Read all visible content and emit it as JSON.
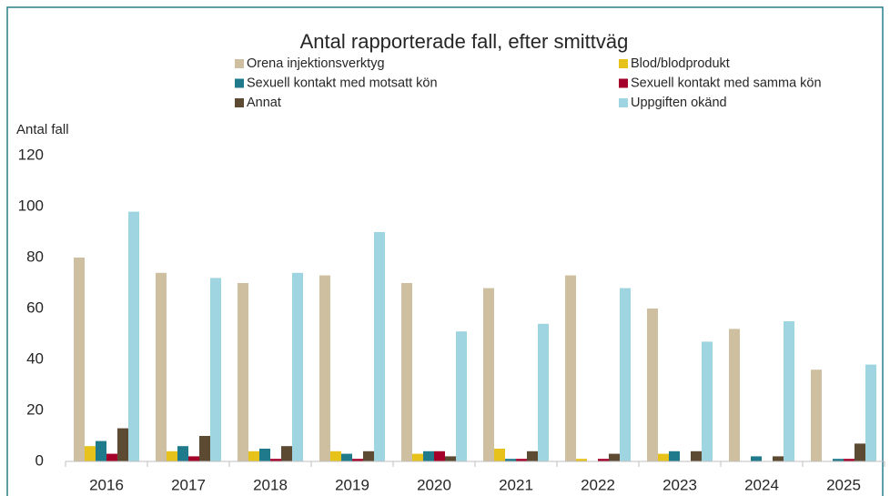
{
  "chart_data": {
    "type": "bar",
    "title": "Antal rapporterade fall, efter smittväg",
    "y_label": "Antal fall",
    "categories": [
      "2016",
      "2017",
      "2018",
      "2019",
      "2020",
      "2021",
      "2022",
      "2023",
      "2024",
      "2025"
    ],
    "series": [
      {
        "name": "Orena injektionsverktyg",
        "color": "#cdbfa0",
        "values": [
          80,
          74,
          70,
          73,
          70,
          68,
          73,
          60,
          52,
          36
        ]
      },
      {
        "name": "Blod/blodprodukt",
        "color": "#e6c21a",
        "values": [
          6,
          4,
          4,
          4,
          3,
          5,
          1,
          3,
          0,
          0
        ]
      },
      {
        "name": "Sexuell kontakt med motsatt kön",
        "color": "#1f7a8c",
        "values": [
          8,
          6,
          5,
          3,
          4,
          1,
          0,
          4,
          2,
          1
        ]
      },
      {
        "name": "Sexuell kontakt med samma kön",
        "color": "#a5002a",
        "values": [
          3,
          2,
          1,
          1,
          4,
          1,
          1,
          0,
          0,
          1
        ]
      },
      {
        "name": "Annat",
        "color": "#5c4a32",
        "values": [
          13,
          10,
          6,
          4,
          2,
          4,
          3,
          4,
          2,
          7
        ]
      },
      {
        "name": "Uppgiften okänd",
        "color": "#9fd5e0",
        "values": [
          98,
          72,
          74,
          90,
          51,
          54,
          68,
          47,
          55,
          38
        ]
      }
    ],
    "ylim": [
      0,
      120
    ],
    "yticks": [
      0,
      20,
      40,
      60,
      80,
      100,
      120
    ],
    "grid": false
  }
}
